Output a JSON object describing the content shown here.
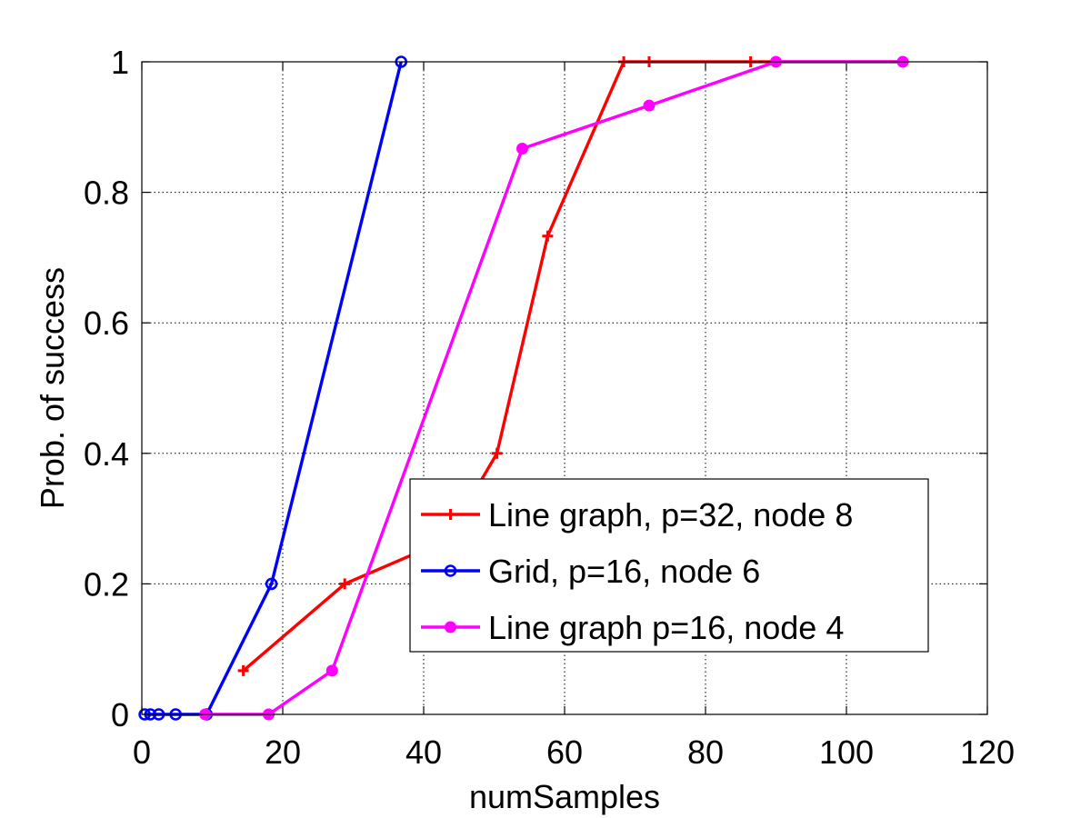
{
  "chart_data": {
    "type": "line",
    "title": "",
    "xlabel": "numSamples",
    "ylabel": "Prob. of success",
    "xlim": [
      0,
      120
    ],
    "ylim": [
      0,
      1
    ],
    "xticks": [
      0,
      20,
      40,
      60,
      80,
      100,
      120
    ],
    "yticks": [
      0,
      0.2,
      0.4,
      0.6,
      0.8,
      1
    ],
    "xtick_labels": [
      "0",
      "20",
      "40",
      "60",
      "80",
      "100",
      "120"
    ],
    "ytick_labels": [
      "0",
      "0.2",
      "0.4",
      "0.6",
      "0.8",
      "1"
    ],
    "grid": true,
    "legend_position": "lower-right",
    "series": [
      {
        "name": "Line graph, p=32, node 8",
        "color": "#ff0000",
        "marker": "plus",
        "x": [
          14.4,
          28.8,
          43.2,
          50.4,
          57.6,
          68.4,
          72,
          86.4,
          90,
          108
        ],
        "y": [
          0.067,
          0.2,
          0.267,
          0.4,
          0.733,
          1,
          1,
          1,
          1,
          1
        ]
      },
      {
        "name": "Grid, p=16, node 6",
        "color": "#0000ff",
        "marker": "circle",
        "x": [
          0.4,
          1.2,
          2.4,
          4.8,
          9.2,
          18.4,
          36.8
        ],
        "y": [
          0,
          0,
          0,
          0,
          0,
          0.2,
          1
        ]
      },
      {
        "name": "Line graph p=16, node 4",
        "color": "#ff00ff",
        "marker": "dot",
        "x": [
          9,
          18,
          27,
          54,
          72,
          90,
          108
        ],
        "y": [
          0,
          0,
          0.067,
          0.867,
          0.933,
          1,
          1
        ]
      }
    ]
  }
}
